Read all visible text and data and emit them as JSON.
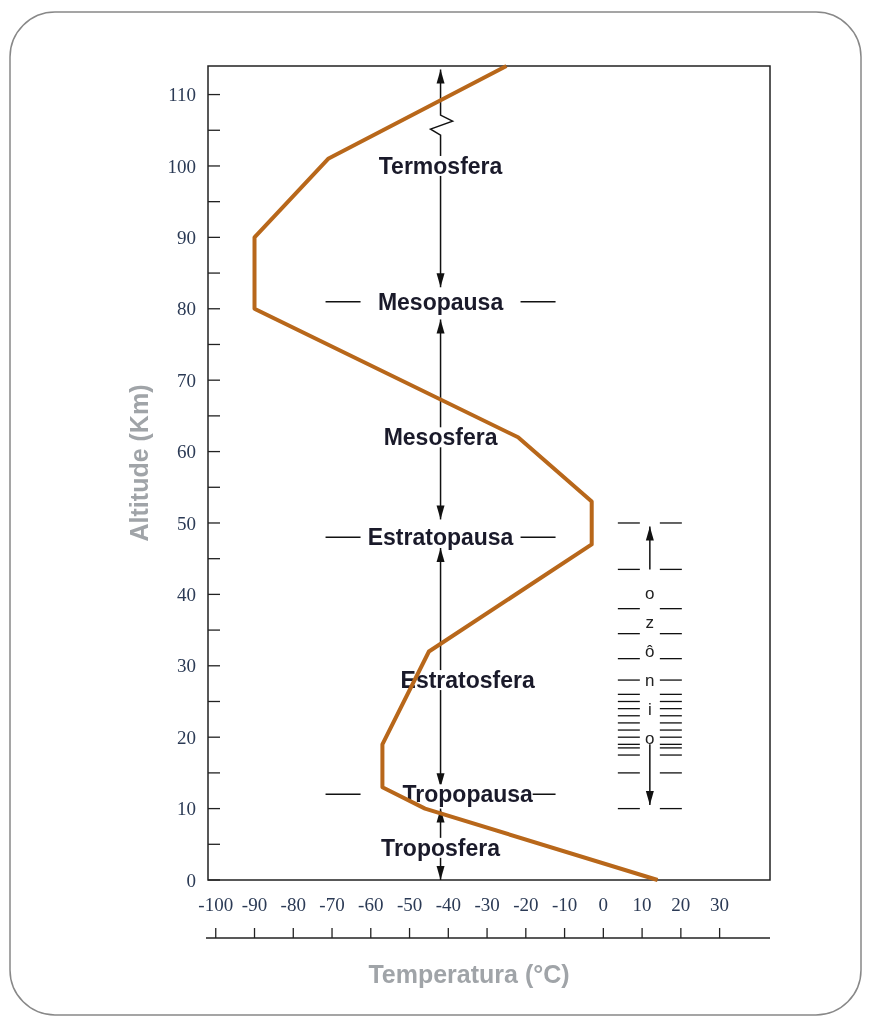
{
  "chart_data": {
    "type": "line",
    "xlabel": "Temperatura (°C)",
    "ylabel": "Altitude (Km)",
    "x": [
      -25,
      -71,
      -90,
      -90,
      -22,
      -3,
      -3,
      -45,
      -57,
      -57,
      -46,
      14
    ],
    "series": [
      {
        "color": "#b8671a",
        "values": [
          114,
          101,
          90,
          80,
          62,
          53,
          47,
          32,
          19,
          13,
          10,
          0
        ]
      }
    ],
    "xlim": [
      -102,
      43
    ],
    "xticks": [
      -100,
      -90,
      -80,
      -70,
      -60,
      -50,
      -40,
      -30,
      -20,
      -10,
      0,
      10,
      20,
      30
    ],
    "ylim": [
      0,
      114
    ],
    "yticks": [
      0,
      {
        "value": 5,
        "label": null
      },
      10,
      {
        "value": 15,
        "label": null
      },
      20,
      {
        "value": 25,
        "label": null
      },
      30,
      {
        "value": 35,
        "label": null
      },
      40,
      {
        "value": 45,
        "label": null
      },
      50,
      {
        "value": 55,
        "label": null
      },
      60,
      {
        "value": 65,
        "label": null
      },
      70,
      {
        "value": 75,
        "label": null
      },
      80,
      {
        "value": 85,
        "label": null
      },
      90,
      {
        "value": 95,
        "label": null
      },
      100,
      {
        "value": 105,
        "label": null
      },
      110
    ],
    "marker": "none",
    "line_style": "solid",
    "annotations": [
      "Termosfera",
      "Mesopausa",
      "Mesosfera",
      "Estratopausa",
      "Estratosfera",
      "Tropopausa",
      "Troposfera",
      "ozônio"
    ]
  }
}
